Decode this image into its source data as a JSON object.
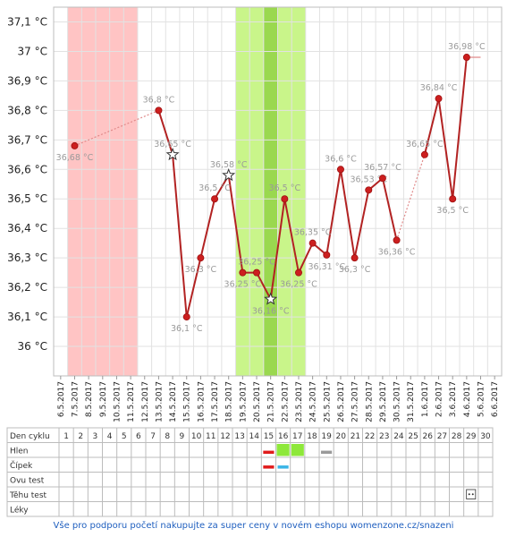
{
  "chart_data": {
    "type": "line",
    "title": "",
    "xlabel": "",
    "ylabel": "",
    "ylim": [
      35.9,
      37.15
    ],
    "y_ticks": [
      "37,1 °C",
      "37 °C",
      "36,9 °C",
      "36,8 °C",
      "36,7 °C",
      "36,6 °C",
      "36,5 °C",
      "36,4 °C",
      "36,3 °C",
      "36,2 °C",
      "36,1 °C",
      "36 °C"
    ],
    "y_tick_values": [
      37.1,
      37.0,
      36.9,
      36.8,
      36.7,
      36.6,
      36.5,
      36.4,
      36.3,
      36.2,
      36.1,
      36.0
    ],
    "dates": [
      "6.5.2017",
      "7.5.2017",
      "8.5.2017",
      "9.5.2017",
      "10.5.2017",
      "11.5.2017",
      "12.5.2017",
      "13.5.2017",
      "14.5.2017",
      "15.5.2017",
      "16.5.2017",
      "17.5.2017",
      "18.5.2017",
      "19.5.2017",
      "20.5.2017",
      "21.5.2017",
      "22.5.2017",
      "23.5.2017",
      "24.5.2017",
      "25.5.2017",
      "26.5.2017",
      "27.5.2017",
      "28.5.2017",
      "29.5.2017",
      "30.5.2017",
      "31.5.2017",
      "1.6.2017",
      "2.6.2017",
      "3.6.2017",
      "4.6.2017",
      "5.6.2017",
      "6.6.2017"
    ],
    "bands": [
      {
        "kind": "period",
        "from_date": "7.5.2017",
        "to_date": "11.5.2017",
        "color": "#ffc4c4"
      },
      {
        "kind": "fertile",
        "from_date": "19.5.2017",
        "to_date": "23.5.2017",
        "color": "#c9f58a"
      },
      {
        "kind": "peak",
        "from_date": "21.5.2017",
        "to_date": "21.5.2017",
        "color": "#9ad84f"
      }
    ],
    "series": [
      {
        "color": "#b22222",
        "points": [
          {
            "date": "7.5.2017",
            "value": 36.68,
            "label": "36,68 °C"
          },
          {
            "date": "13.5.2017",
            "value": 36.8,
            "label": "36,8 °C"
          },
          {
            "date": "14.5.2017",
            "value": 36.65,
            "label": "36,65 °C",
            "marker": "star"
          },
          {
            "date": "15.5.2017",
            "value": 36.1,
            "label": "36,1 °C"
          },
          {
            "date": "16.5.2017",
            "value": 36.3,
            "label": "36,3 °C"
          },
          {
            "date": "17.5.2017",
            "value": 36.5,
            "label": "36,5 °C"
          },
          {
            "date": "18.5.2017",
            "value": 36.58,
            "label": "36,58 °C",
            "marker": "star"
          },
          {
            "date": "19.5.2017",
            "value": 36.25,
            "label": "36,25 °C"
          },
          {
            "date": "20.5.2017",
            "value": 36.25,
            "label": "36,25 °C"
          },
          {
            "date": "21.5.2017",
            "value": 36.16,
            "label": "36,16 °C",
            "marker": "star"
          },
          {
            "date": "22.5.2017",
            "value": 36.5,
            "label": "36,5 °C"
          },
          {
            "date": "23.5.2017",
            "value": 36.25,
            "label": "36,25 °C"
          },
          {
            "date": "24.5.2017",
            "value": 36.35,
            "label": "36,35 °C"
          },
          {
            "date": "25.5.2017",
            "value": 36.31,
            "label": "36,31 °C"
          },
          {
            "date": "26.5.2017",
            "value": 36.6,
            "label": "36,6 °C"
          },
          {
            "date": "27.5.2017",
            "value": 36.3,
            "label": "36,3 °C"
          },
          {
            "date": "28.5.2017",
            "value": 36.53,
            "label": "36,53 °C"
          },
          {
            "date": "29.5.2017",
            "value": 36.57,
            "label": "36,57 °C"
          },
          {
            "date": "30.5.2017",
            "value": 36.36,
            "label": "36,36 °C"
          },
          {
            "date": "1.6.2017",
            "value": 36.65,
            "label": "36,65 °C"
          },
          {
            "date": "2.6.2017",
            "value": 36.84,
            "label": "36,84 °C"
          },
          {
            "date": "3.6.2017",
            "value": 36.5,
            "label": "36,5 °C"
          },
          {
            "date": "4.6.2017",
            "value": 36.98,
            "label": "36,98 °C"
          }
        ],
        "dashed_segments": [
          [
            0,
            1
          ],
          [
            18,
            19
          ]
        ],
        "trailing_flat_to": "5.6.2017"
      }
    ],
    "grid": true
  },
  "table": {
    "rows": [
      "Den cyklu",
      "Hlen",
      "Čípek",
      "Ovu test",
      "Těhu test",
      "Léky"
    ],
    "cycle_days": [
      "1",
      "2",
      "3",
      "4",
      "5",
      "6",
      "7",
      "8",
      "9",
      "10",
      "11",
      "12",
      "13",
      "14",
      "15",
      "16",
      "17",
      "18",
      "19",
      "20",
      "21",
      "22",
      "23",
      "24",
      "25",
      "26",
      "27",
      "28",
      "29",
      "30"
    ],
    "marks": [
      {
        "row": "Hlen",
        "day": 15,
        "kind": "red-bar",
        "color": "#e01b1b"
      },
      {
        "row": "Hlen",
        "day": 16,
        "kind": "green-block",
        "color": "#8ee83a"
      },
      {
        "row": "Hlen",
        "day": 17,
        "kind": "green-block",
        "color": "#8ee83a"
      },
      {
        "row": "Hlen",
        "day": 19,
        "kind": "gray-bar",
        "color": "#9a9a9a"
      },
      {
        "row": "Čípek",
        "day": 15,
        "kind": "red-bar",
        "color": "#e01b1b"
      },
      {
        "row": "Čípek",
        "day": 16,
        "kind": "cyan-bar",
        "color": "#3ab5e6"
      },
      {
        "row": "Těhu test",
        "day": 29,
        "kind": "test-icon",
        "color": "#333333"
      }
    ]
  },
  "footer": {
    "text": "Vše pro podporu početí nakupujte za super ceny v novém eshopu womenzone.cz/snazeni"
  }
}
